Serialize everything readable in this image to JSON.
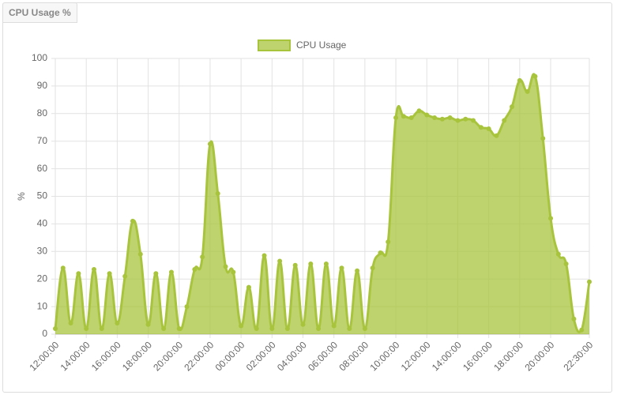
{
  "tab": "CPU Usage %",
  "chart_data": {
    "type": "area",
    "y_label": "%",
    "legend": "top",
    "grid": true,
    "categories": [
      "12:00:00",
      null,
      null,
      null,
      "14:00:00",
      null,
      null,
      null,
      "16:00:00",
      null,
      null,
      null,
      "18:00:00",
      null,
      null,
      null,
      "20:00:00",
      null,
      null,
      null,
      "22:00:00",
      null,
      null,
      null,
      "00:00:00",
      null,
      null,
      null,
      "02:00:00",
      null,
      null,
      null,
      "04:00:00",
      null,
      null,
      null,
      "06:00:00",
      null,
      null,
      null,
      "08:00:00",
      null,
      null,
      null,
      "10:00:00",
      null,
      null,
      null,
      "12:00:00",
      null,
      null,
      null,
      "14:00:00",
      null,
      null,
      null,
      "16:00:00",
      null,
      null,
      null,
      "18:00:00",
      null,
      null,
      null,
      "20:00:00",
      null,
      null,
      null,
      null,
      "22:30:00"
    ],
    "series": [
      {
        "name": "CPU Usage",
        "color": "#a8c43c",
        "values": [
          2,
          24,
          4,
          22,
          2,
          23.5,
          2,
          22,
          4,
          21,
          41,
          29,
          3.5,
          22,
          2,
          22.5,
          2,
          10,
          23.5,
          28,
          69,
          51,
          24.5,
          22.5,
          3,
          17,
          2,
          28.5,
          2,
          26.5,
          2,
          25,
          3.5,
          25.5,
          2,
          25.5,
          3,
          24,
          2,
          23,
          2,
          24,
          29.5,
          33.5,
          78.5,
          79,
          78.5,
          81,
          79.5,
          78.5,
          78,
          78.5,
          77.5,
          78,
          77.5,
          75,
          74.5,
          72,
          77.5,
          82.5,
          92,
          88,
          93.5,
          71,
          42,
          29,
          25.5,
          5.5,
          1.5,
          19
        ]
      }
    ],
    "ylim": [
      0,
      100
    ],
    "yticks": [
      0,
      10,
      20,
      30,
      40,
      50,
      60,
      70,
      80,
      90,
      100
    ]
  }
}
